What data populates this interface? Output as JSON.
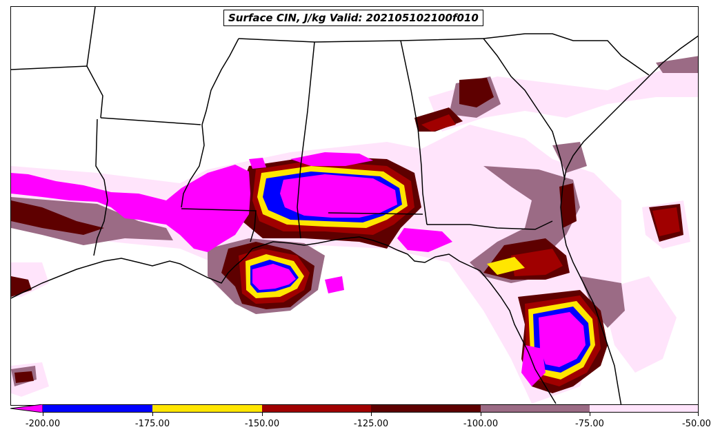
{
  "title": "Surface CIN, J/kg Valid: 202105102100f010",
  "colors": {
    "lt_minus_200": "#ff00ff",
    "minus200_175": "#0000ff",
    "minus175_150": "#ffe600",
    "minus150_125": "#a00000",
    "minus125_100": "#5e0000",
    "minus100_75": "#9b6b85",
    "minus75_50": "#ffe4fb",
    "borders": "#000000",
    "background": "#ffffff"
  },
  "colorbar": {
    "extend": "min",
    "ticks": [
      "-200.00",
      "-175.00",
      "-150.00",
      "-125.00",
      "-100.00",
      "-75.00",
      "-50.00"
    ],
    "segment_colors": [
      "#0000ff",
      "#ffe600",
      "#a00000",
      "#5e0000",
      "#9b6b85",
      "#ffe4fb"
    ],
    "extension_color": "#ff00ff"
  }
}
